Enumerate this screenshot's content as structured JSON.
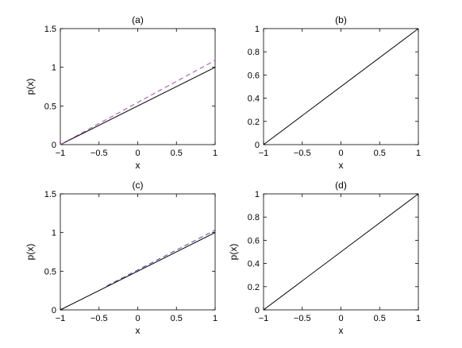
{
  "figure": {
    "background": "#ffffff",
    "line_colors": {
      "exact": "#000000",
      "approx_a": "#c040c0",
      "approx_c": "#4040c0"
    }
  },
  "chart_data": [
    {
      "type": "line",
      "title": "(a)",
      "xlabel": "x",
      "ylabel": "p(x)",
      "xlim": [
        -1,
        1
      ],
      "ylim": [
        0,
        1.5
      ],
      "xticks": [
        -1,
        -0.5,
        0,
        0.5,
        1
      ],
      "xtick_labels": [
        "−1",
        "−0.5",
        "0",
        "0.5",
        "1"
      ],
      "yticks": [
        0,
        0.5,
        1,
        1.5
      ],
      "ytick_labels": [
        "0",
        "0.5",
        "1",
        "1.5"
      ],
      "grid": false,
      "series": [
        {
          "x": [
            -1,
            1
          ],
          "values": [
            0,
            1.0
          ],
          "color": "#000000",
          "style": "solid"
        },
        {
          "x": [
            -1,
            1
          ],
          "values": [
            0,
            1.09
          ],
          "color": "#c040c0",
          "style": "dashed"
        }
      ]
    },
    {
      "type": "line",
      "title": "(b)",
      "xlabel": "x",
      "ylabel": "",
      "xlim": [
        -1,
        1
      ],
      "ylim": [
        0,
        1
      ],
      "xticks": [
        -1,
        -0.5,
        0,
        0.5,
        1
      ],
      "xtick_labels": [
        "−1",
        "−0.5",
        "0",
        "0.5",
        "1"
      ],
      "yticks": [
        0,
        0.2,
        0.4,
        0.6,
        0.8,
        1
      ],
      "ytick_labels": [
        "0",
        "0.2",
        "0.4",
        "0.6",
        "0.8",
        "1"
      ],
      "grid": false,
      "series": [
        {
          "x": [
            -1,
            1
          ],
          "values": [
            0,
            1.0
          ],
          "color": "#000000",
          "style": "solid"
        }
      ]
    },
    {
      "type": "line",
      "title": "(c)",
      "xlabel": "x",
      "ylabel": "p(x)",
      "xlim": [
        -1,
        1
      ],
      "ylim": [
        0,
        1.5
      ],
      "xticks": [
        -1,
        -0.5,
        0,
        0.5,
        1
      ],
      "xtick_labels": [
        "−1",
        "−0.5",
        "0",
        "0.5",
        "1"
      ],
      "yticks": [
        0,
        0.5,
        1,
        1.5
      ],
      "ytick_labels": [
        "0",
        "0.5",
        "1",
        "1.5"
      ],
      "grid": false,
      "series": [
        {
          "x": [
            -1,
            1
          ],
          "values": [
            0,
            1.0
          ],
          "color": "#000000",
          "style": "solid"
        },
        {
          "x": [
            -0.4,
            1
          ],
          "values": [
            0.31,
            1.03
          ],
          "color": "#4040c0",
          "style": "dashed"
        }
      ]
    },
    {
      "type": "line",
      "title": "(d)",
      "xlabel": "x",
      "ylabel": "p(x)",
      "xlim": [
        -1,
        1
      ],
      "ylim": [
        0,
        1
      ],
      "xticks": [
        -1,
        -0.5,
        0,
        0.5,
        1
      ],
      "xtick_labels": [
        "−1",
        "−0.5",
        "0",
        "0.5",
        "1"
      ],
      "yticks": [
        0,
        0.2,
        0.4,
        0.6,
        0.8,
        1
      ],
      "ytick_labels": [
        "0",
        "0.2",
        "0.4",
        "0.6",
        "0.8",
        "1"
      ],
      "grid": false,
      "series": [
        {
          "x": [
            -1,
            1
          ],
          "values": [
            0,
            1.0
          ],
          "color": "#000000",
          "style": "solid"
        }
      ]
    }
  ]
}
